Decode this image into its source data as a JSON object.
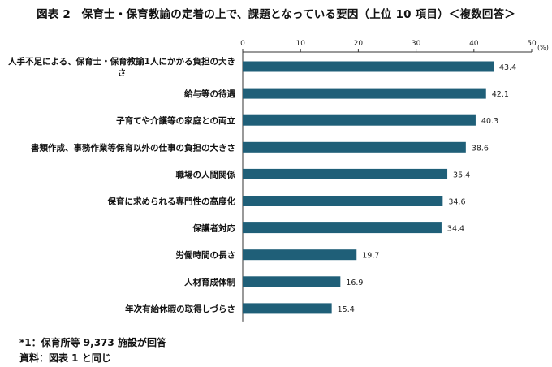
{
  "title": "図表 2　保育士・保育教諭の定着の上で、課題となっている要因（上位 10 項目）＜複数回答＞",
  "chart_data": {
    "type": "bar",
    "orientation": "horizontal",
    "unit_label": "(%)",
    "xlim": [
      0,
      50
    ],
    "ticks": [
      0,
      10,
      20,
      30,
      40,
      50
    ],
    "grid": false,
    "bar_color": "#1f5f78",
    "categories": [
      [
        "人手不足による、保育士・保育教諭1人にかかる負担の大き",
        "さ"
      ],
      [
        "給与等の待遇"
      ],
      [
        "子育てや介護等の家庭との両立"
      ],
      [
        "書類作成、事務作業等保育以外の仕事の負担の大きさ"
      ],
      [
        "職場の人間関係"
      ],
      [
        "保育に求められる専門性の高度化"
      ],
      [
        "保護者対応"
      ],
      [
        "労働時間の長さ"
      ],
      [
        "人材育成体制"
      ],
      [
        "年次有給休暇の取得しづらさ"
      ]
    ],
    "values": [
      43.4,
      42.1,
      40.3,
      38.6,
      35.4,
      34.6,
      34.4,
      19.7,
      16.9,
      15.4
    ],
    "value_labels": [
      "43.4",
      "42.1",
      "40.3",
      "38.6",
      "35.4",
      "34.6",
      "34.4",
      "19.7",
      "16.9",
      "15.4"
    ]
  },
  "footnotes": {
    "note1": "*1：保育所等 9,373 施設が回答",
    "note2": "資料：図表 1 と同じ"
  }
}
